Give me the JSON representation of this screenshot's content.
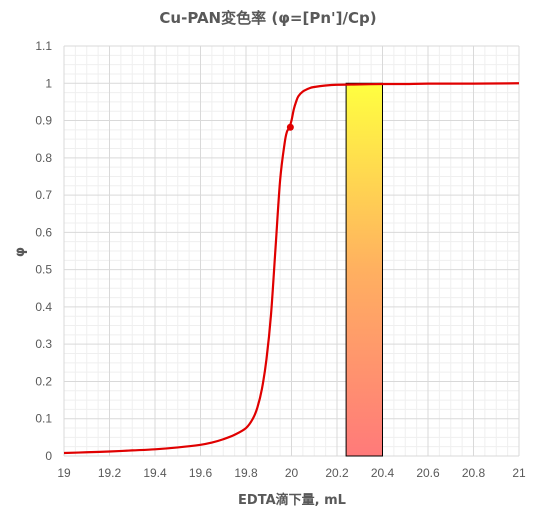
{
  "chart_data": {
    "type": "line",
    "title": "Cu-PAN変色率 (φ=[Pn']/Cp)",
    "xlabel": "EDTA滴下量, mL",
    "ylabel": "φ",
    "xlim": [
      19,
      21
    ],
    "ylim": [
      0,
      1.1
    ],
    "x_ticks": [
      "19",
      "19.2",
      "19.4",
      "19.6",
      "19.8",
      "20",
      "20.2",
      "20.4",
      "20.6",
      "20.8",
      "21"
    ],
    "y_ticks": [
      "0",
      "0.1",
      "0.2",
      "0.3",
      "0.4",
      "0.5",
      "0.6",
      "0.7",
      "0.8",
      "0.9",
      "1",
      "1.1"
    ],
    "grid": true,
    "colors": {
      "line": "#e00000",
      "grid_major": "#d9d9d9",
      "grid_minor": "#efefef",
      "band_top": "#ffff40",
      "band_bottom": "#ff7a7a",
      "band_stroke": "#000000"
    },
    "series": [
      {
        "x": [
          19.0,
          19.1,
          19.2,
          19.3,
          19.4,
          19.5,
          19.6,
          19.65,
          19.7,
          19.75,
          19.8,
          19.83,
          19.85,
          19.87,
          19.89,
          19.91,
          19.93,
          19.95,
          19.97,
          19.98,
          19.99,
          20.0,
          20.01,
          20.02,
          20.03,
          20.05,
          20.08,
          20.1,
          20.15,
          20.2,
          20.3,
          20.4,
          20.5,
          20.6,
          20.8,
          21.0
        ],
        "values": [
          0.008,
          0.01,
          0.012,
          0.015,
          0.018,
          0.023,
          0.03,
          0.036,
          0.045,
          0.057,
          0.075,
          0.1,
          0.13,
          0.18,
          0.26,
          0.38,
          0.56,
          0.74,
          0.84,
          0.87,
          0.88,
          0.9,
          0.93,
          0.95,
          0.965,
          0.978,
          0.987,
          0.99,
          0.994,
          0.996,
          0.997,
          0.998,
          0.998,
          0.999,
          0.999,
          1.0
        ]
      }
    ],
    "marker": {
      "x": 19.995,
      "y": 0.882
    },
    "band": {
      "x0": 20.24,
      "x1": 20.4,
      "y0": 0,
      "y1": 1.0
    }
  }
}
